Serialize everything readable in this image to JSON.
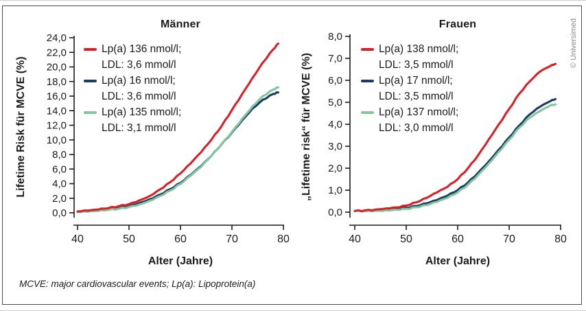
{
  "figure": {
    "copyright": "© Universimed",
    "footnote": "MCVE: major cardiovascular events; Lp(a): Lipoprotein(a)"
  },
  "colors": {
    "red": "#d92027",
    "blue": "#1c3b63",
    "green": "#82c59f",
    "axis": "#1a1a1a",
    "copyright_gray": "#8a8a8a",
    "frame_border": "#4a4a4a"
  },
  "chart_data": [
    {
      "type": "line",
      "title": "Männer",
      "xlabel": "Alter (Jahre)",
      "ylabel": "Lifetime Risk für MCVE (%)",
      "xlim": [
        40,
        80
      ],
      "ylim": [
        0,
        24
      ],
      "grid": false,
      "legend_position": "top-left",
      "xticks": [
        "40",
        "50",
        "60",
        "70",
        "80"
      ],
      "yticks": [
        "0,0",
        "2,0",
        "4,0",
        "6,0",
        "8,0",
        "10,0",
        "12,0",
        "14,0",
        "16,0",
        "18,0",
        "20,0",
        "22,0",
        "24,0"
      ],
      "x": [
        40,
        42,
        44,
        46,
        48,
        50,
        52,
        54,
        56,
        58,
        60,
        62,
        64,
        66,
        68,
        70,
        72,
        74,
        76,
        78,
        79
      ],
      "series": [
        {
          "name": "Lp(a) 136 nmol/l;",
          "name_line2": "LDL: 3,6 mmol/l",
          "color": "red",
          "values": [
            0.2,
            0.3,
            0.45,
            0.65,
            0.9,
            1.2,
            1.7,
            2.3,
            3.2,
            4.2,
            5.4,
            6.8,
            8.3,
            10.0,
            11.9,
            14.1,
            16.3,
            18.5,
            20.6,
            22.4,
            23.2
          ]
        },
        {
          "name": "Lp(a) 16 nmol/l;",
          "name_line2": "LDL: 3,6 mmol/l",
          "color": "blue",
          "values": [
            0.15,
            0.22,
            0.33,
            0.5,
            0.7,
            0.95,
            1.35,
            1.85,
            2.5,
            3.25,
            4.1,
            5.2,
            6.4,
            7.8,
            9.4,
            11.0,
            12.7,
            14.3,
            15.5,
            16.3,
            16.5
          ]
        },
        {
          "name": "Lp(a) 135 nmol/l;",
          "name_line2": "LDL: 3,1 mmol/l",
          "color": "green",
          "values": [
            0.1,
            0.15,
            0.25,
            0.4,
            0.55,
            0.8,
            1.15,
            1.65,
            2.3,
            3.05,
            3.95,
            5.1,
            6.3,
            7.8,
            9.4,
            11.1,
            12.9,
            14.6,
            16.0,
            16.9,
            17.2
          ]
        }
      ]
    },
    {
      "type": "line",
      "title": "Frauen",
      "xlabel": "Alter (Jahre)",
      "ylabel": "„Lifetime risk“ für MCVE (%)",
      "xlim": [
        40,
        80
      ],
      "ylim": [
        0,
        8
      ],
      "grid": false,
      "legend_position": "top-left",
      "xticks": [
        "40",
        "50",
        "60",
        "70",
        "80"
      ],
      "yticks": [
        "0,0",
        "1,0",
        "2,0",
        "3,0",
        "4,0",
        "5,0",
        "6,0",
        "7,0",
        "8,0"
      ],
      "x": [
        40,
        42,
        44,
        46,
        48,
        50,
        52,
        54,
        56,
        58,
        60,
        62,
        64,
        66,
        68,
        70,
        72,
        74,
        76,
        78,
        79
      ],
      "series": [
        {
          "name": "Lp(a) 138 nmol/l;",
          "name_line2": "LDL: 3,5 mmol/l",
          "color": "red",
          "values": [
            0.05,
            0.08,
            0.12,
            0.17,
            0.22,
            0.3,
            0.45,
            0.65,
            0.9,
            1.15,
            1.5,
            2.0,
            2.6,
            3.3,
            4.0,
            4.7,
            5.4,
            5.95,
            6.4,
            6.65,
            6.75
          ]
        },
        {
          "name": "Lp(a) 17 nmol/l;",
          "name_line2": "LDL: 3,5 mmol/l",
          "color": "blue",
          "values": [
            0.05,
            0.06,
            0.08,
            0.11,
            0.15,
            0.2,
            0.28,
            0.4,
            0.55,
            0.75,
            1.0,
            1.35,
            1.8,
            2.3,
            2.85,
            3.4,
            3.95,
            4.45,
            4.8,
            5.05,
            5.15
          ]
        },
        {
          "name": "Lp(a) 137 nmol/l;",
          "name_line2": "LDL: 3,0 mmol/l",
          "color": "green",
          "values": [
            0.05,
            0.05,
            0.06,
            0.08,
            0.11,
            0.15,
            0.22,
            0.32,
            0.47,
            0.65,
            0.9,
            1.25,
            1.7,
            2.2,
            2.75,
            3.3,
            3.85,
            4.3,
            4.6,
            4.85,
            4.9
          ]
        }
      ]
    }
  ]
}
